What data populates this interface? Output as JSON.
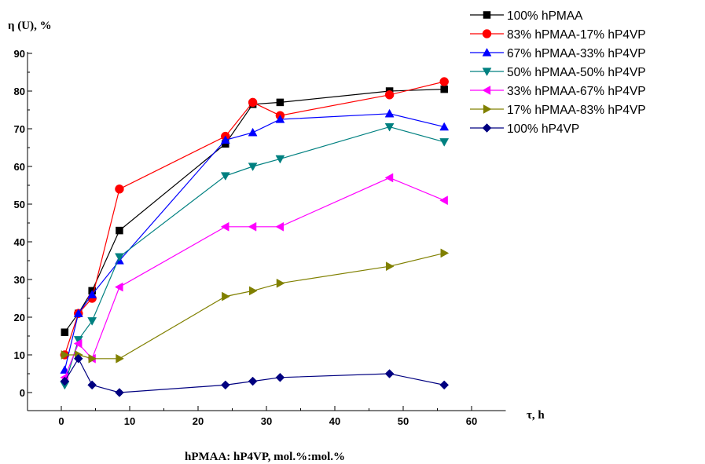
{
  "chart_data": {
    "type": "line",
    "ylabel": "η (U), %",
    "xlabel": "τ, h",
    "caption": "hPMAA: hP4VP, mol.%:mol.%",
    "xlim": [
      -10,
      65
    ],
    "ylim": [
      -5,
      90
    ],
    "x_ticks": [
      0,
      10,
      20,
      30,
      40,
      50,
      60
    ],
    "y_ticks": [
      0,
      10,
      20,
      30,
      40,
      50,
      60,
      70,
      80,
      90
    ],
    "grid": false,
    "legend_position": "top-right",
    "series": [
      {
        "name": "100% hPMAA",
        "color": "#000000",
        "marker": "square",
        "x": [
          0.5,
          2.5,
          4.5,
          8.5,
          24,
          28,
          32,
          48,
          56
        ],
        "y": [
          16,
          21,
          27,
          43,
          66,
          76.5,
          77,
          80,
          80.5
        ]
      },
      {
        "name": "83% hPMAA-17% hP4VP",
        "color": "#ff0000",
        "marker": "circle",
        "x": [
          0.5,
          2.5,
          4.5,
          8.5,
          24,
          28,
          32,
          48,
          56
        ],
        "y": [
          10,
          21,
          25,
          54,
          68,
          77,
          73.5,
          79,
          82.5
        ]
      },
      {
        "name": "67% hPMAA-33% hP4VP",
        "color": "#0000ff",
        "marker": "triangle-up",
        "x": [
          0.5,
          2.5,
          4.5,
          8.5,
          24,
          28,
          32,
          48,
          56
        ],
        "y": [
          6,
          21,
          26,
          35,
          67,
          69,
          72.5,
          74,
          70.5
        ]
      },
      {
        "name": "50% hPMAA-50% hP4VP",
        "color": "#008080",
        "marker": "triangle-down",
        "x": [
          0.5,
          2.5,
          4.5,
          8.5,
          24,
          28,
          32,
          48,
          56
        ],
        "y": [
          2,
          14,
          19,
          36,
          57.5,
          60,
          62,
          70.5,
          66.5
        ]
      },
      {
        "name": "33% hPMAA-67% hP4VP",
        "color": "#ff00ff",
        "marker": "triangle-left",
        "x": [
          0.5,
          2.5,
          4.5,
          8.5,
          24,
          28,
          32,
          48,
          56
        ],
        "y": [
          4,
          13,
          9,
          28,
          44,
          44,
          44,
          57,
          51
        ]
      },
      {
        "name": "17% hPMAA-83% hP4VP",
        "color": "#808000",
        "marker": "triangle-right",
        "x": [
          0.5,
          2.5,
          4.5,
          8.5,
          24,
          28,
          32,
          48,
          56
        ],
        "y": [
          10,
          10,
          9,
          9,
          25.5,
          27,
          29,
          33.5,
          37
        ]
      },
      {
        "name": "100% hP4VP",
        "color": "#000080",
        "marker": "diamond",
        "x": [
          0.5,
          2.5,
          4.5,
          8.5,
          24,
          28,
          32,
          48,
          56
        ],
        "y": [
          3,
          9,
          2,
          0,
          2,
          3,
          4,
          5,
          2
        ]
      }
    ]
  }
}
